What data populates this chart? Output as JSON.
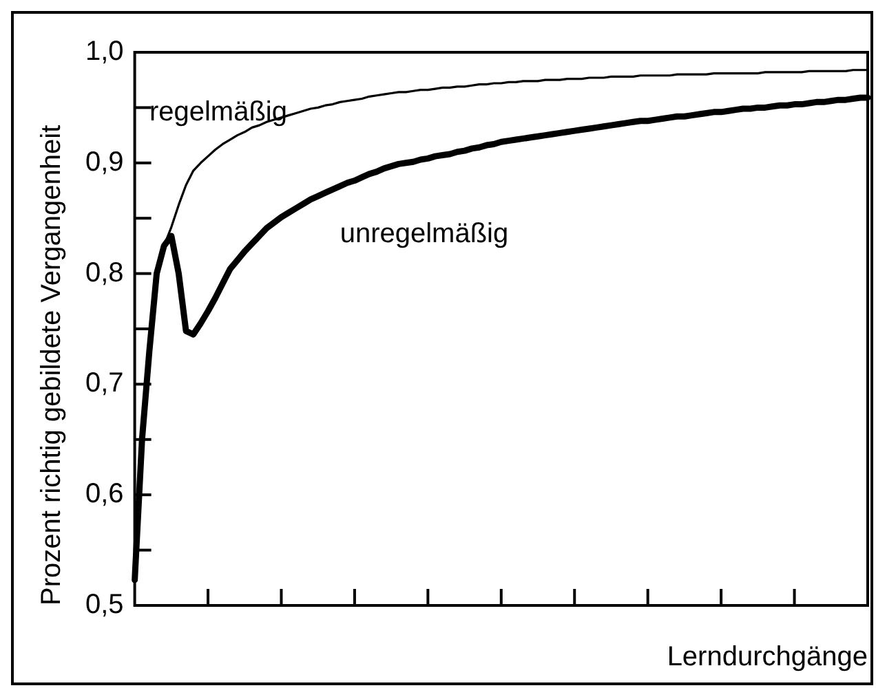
{
  "chart_data": {
    "type": "line",
    "ylabel": "Prozent richtig gebildete Vergangenheit",
    "xlabel": "Lerndurchgänge",
    "categories": [
      null,
      null,
      null,
      null,
      null,
      null,
      null,
      null,
      null,
      null,
      null,
      null,
      null,
      null,
      null,
      null,
      null,
      null,
      null,
      null,
      null,
      null,
      null,
      null,
      null,
      null,
      null,
      null,
      null,
      null,
      null,
      null,
      null,
      null,
      null,
      null,
      null,
      null,
      null,
      null,
      null,
      null,
      null,
      null,
      null,
      null,
      null,
      null,
      null,
      null,
      null,
      null,
      null,
      null,
      null,
      null,
      null,
      null,
      null,
      null,
      null,
      null,
      null,
      null,
      null,
      null,
      null,
      null,
      null,
      null,
      null,
      null,
      null,
      null,
      null,
      null,
      null,
      null,
      null,
      null,
      null,
      null,
      null,
      null,
      null,
      null,
      null,
      null,
      null,
      null,
      null,
      null,
      null,
      null,
      null,
      null,
      null,
      null,
      null,
      null,
      null
    ],
    "ylim": [
      0.5,
      1.0
    ],
    "yticks": [
      {
        "value": 0.5,
        "label": "0,5"
      },
      {
        "value": 0.55,
        "label": null
      },
      {
        "value": 0.6,
        "label": "0,6"
      },
      {
        "value": 0.65,
        "label": null
      },
      {
        "value": 0.7,
        "label": "0,7"
      },
      {
        "value": 0.75,
        "label": null
      },
      {
        "value": 0.8,
        "label": "0,8"
      },
      {
        "value": 0.85,
        "label": null
      },
      {
        "value": 0.9,
        "label": "0,9"
      },
      {
        "value": 0.95,
        "label": null
      },
      {
        "value": 1.0,
        "label": "1,0"
      }
    ],
    "tick_labels": "y",
    "grid": false,
    "marker": "none",
    "line_style": "solid",
    "series": [
      {
        "name": "regelmäßig",
        "color": "#000000",
        "values": [
          0.523,
          0.65,
          0.73,
          0.8,
          0.825,
          0.842,
          0.862,
          0.88,
          0.893,
          0.9,
          0.906,
          0.912,
          0.917,
          0.921,
          0.925,
          0.928,
          0.932,
          0.934,
          0.937,
          0.939,
          0.941,
          0.943,
          0.945,
          0.947,
          0.949,
          0.95,
          0.952,
          0.953,
          0.955,
          0.956,
          0.957,
          0.958,
          0.96,
          0.961,
          0.962,
          0.963,
          0.964,
          0.964,
          0.965,
          0.966,
          0.966,
          0.967,
          0.968,
          0.968,
          0.969,
          0.969,
          0.97,
          0.971,
          0.971,
          0.972,
          0.972,
          0.973,
          0.973,
          0.974,
          0.974,
          0.974,
          0.975,
          0.975,
          0.975,
          0.976,
          0.976,
          0.976,
          0.977,
          0.977,
          0.977,
          0.978,
          0.978,
          0.978,
          0.978,
          0.979,
          0.979,
          0.979,
          0.979,
          0.979,
          0.98,
          0.98,
          0.98,
          0.98,
          0.98,
          0.981,
          0.981,
          0.981,
          0.981,
          0.981,
          0.981,
          0.981,
          0.982,
          0.982,
          0.982,
          0.982,
          0.982,
          0.982,
          0.983,
          0.983,
          0.983,
          0.983,
          0.983,
          0.983,
          0.984,
          0.984,
          0.984
        ]
      },
      {
        "name": "unregelmäßig",
        "color": "#000000",
        "values": [
          0.523,
          0.65,
          0.73,
          0.8,
          0.825,
          0.834,
          0.8,
          0.748,
          0.745,
          0.755,
          0.766,
          0.778,
          0.791,
          0.804,
          0.812,
          0.82,
          0.827,
          0.834,
          0.841,
          0.846,
          0.851,
          0.855,
          0.859,
          0.863,
          0.867,
          0.87,
          0.873,
          0.876,
          0.879,
          0.882,
          0.884,
          0.887,
          0.89,
          0.892,
          0.895,
          0.897,
          0.899,
          0.9,
          0.901,
          0.903,
          0.904,
          0.906,
          0.907,
          0.908,
          0.91,
          0.911,
          0.913,
          0.914,
          0.916,
          0.917,
          0.919,
          0.92,
          0.921,
          0.922,
          0.923,
          0.924,
          0.925,
          0.926,
          0.927,
          0.928,
          0.929,
          0.93,
          0.931,
          0.932,
          0.933,
          0.934,
          0.935,
          0.936,
          0.937,
          0.938,
          0.938,
          0.939,
          0.94,
          0.941,
          0.942,
          0.942,
          0.943,
          0.944,
          0.945,
          0.946,
          0.946,
          0.947,
          0.948,
          0.949,
          0.949,
          0.95,
          0.95,
          0.951,
          0.952,
          0.952,
          0.953,
          0.953,
          0.954,
          0.955,
          0.955,
          0.956,
          0.957,
          0.957,
          0.958,
          0.959,
          0.959
        ]
      }
    ]
  }
}
